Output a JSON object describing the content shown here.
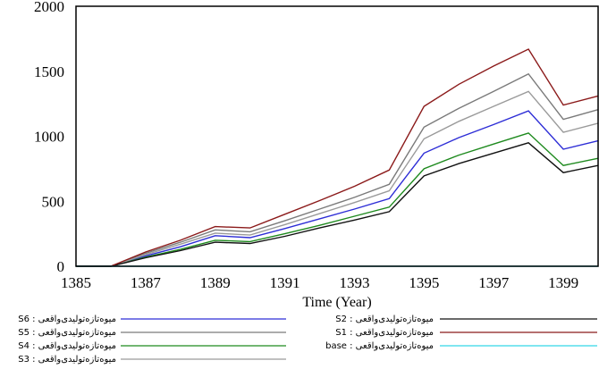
{
  "chart_data": {
    "type": "line",
    "title": "",
    "xlabel": "Time (Year)",
    "ylabel": "",
    "xlim": [
      1385,
      1400
    ],
    "ylim": [
      0,
      2000
    ],
    "x_ticks": [
      "1385",
      "1387",
      "1389",
      "1391",
      "1393",
      "1395",
      "1397",
      "1399"
    ],
    "y_ticks": [
      "0",
      "500",
      "1000",
      "1500",
      "2000"
    ],
    "grid": false,
    "legend_position": "bottom",
    "x": [
      1385,
      1386,
      1387,
      1388,
      1389,
      1390,
      1391,
      1392,
      1393,
      1394,
      1395,
      1396,
      1397,
      1398,
      1399,
      1400
    ],
    "series": [
      {
        "name": "S6 : میوه‌تازه‌تولیدی‌واقعی",
        "color": "#2d2dd6",
        "values": [
          0,
          0,
          80,
          150,
          235,
          220,
          290,
          365,
          440,
          520,
          870,
          990,
          1090,
          1195,
          900,
          965
        ]
      },
      {
        "name": "S5 : میوه‌تازه‌تولیدی‌واقعی",
        "color": "#7a7a7a",
        "values": [
          0,
          0,
          100,
          185,
          280,
          265,
          350,
          440,
          530,
          630,
          1070,
          1215,
          1345,
          1480,
          1130,
          1205
        ]
      },
      {
        "name": "S4 : میوه‌تازه‌تولیدی‌واقعی",
        "color": "#1e8a1e",
        "values": [
          0,
          0,
          70,
          130,
          200,
          190,
          250,
          315,
          385,
          455,
          750,
          855,
          940,
          1025,
          775,
          830
        ]
      },
      {
        "name": "S3 : میوه‌تازه‌تولیدی‌واقعی",
        "color": "#9a9a9a",
        "values": [
          0,
          0,
          90,
          170,
          255,
          240,
          320,
          405,
          490,
          580,
          980,
          1115,
          1230,
          1345,
          1030,
          1100
        ]
      },
      {
        "name": "S2 : میوه‌تازه‌تولیدی‌واقعی",
        "color": "#111111",
        "values": [
          0,
          0,
          65,
          120,
          185,
          175,
          230,
          295,
          355,
          420,
          695,
          790,
          870,
          950,
          720,
          775
        ]
      },
      {
        "name": "S1 : میوه‌تازه‌تولیدی‌واقعی",
        "color": "#8b1a1a",
        "values": [
          0,
          0,
          110,
          200,
          305,
          295,
          400,
          505,
          615,
          740,
          1230,
          1400,
          1540,
          1670,
          1240,
          1310
        ]
      },
      {
        "name": "base : میوه‌تازه‌تولیدی‌واقعی",
        "color": "#33d6e6",
        "values": [
          0,
          0,
          0,
          0,
          0,
          0,
          0,
          0,
          0,
          0,
          0,
          0,
          0,
          0,
          0,
          0
        ]
      }
    ]
  }
}
